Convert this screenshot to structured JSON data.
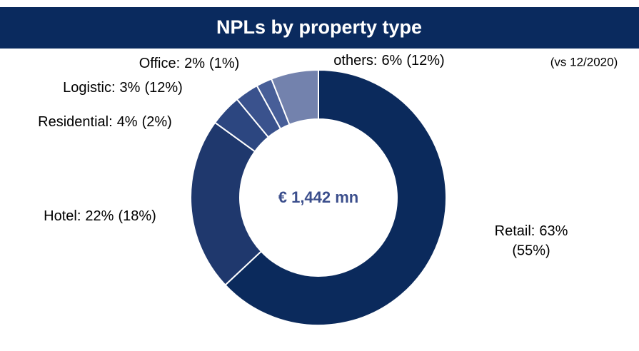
{
  "chart_data": {
    "type": "donut",
    "title": "NPLs by property type",
    "center_label": "€ 1,442 mn",
    "note": "(vs 12/2020)",
    "categories": [
      "Retail:",
      "Hotel:",
      "Residential:",
      "Logistic:",
      "Office:",
      "others:"
    ],
    "values": [
      63,
      22,
      4,
      3,
      2,
      6
    ],
    "value_labels": [
      "63%",
      "22%",
      "4%",
      "3%",
      "2%",
      "6%"
    ],
    "prev_values": [
      55,
      18,
      2,
      12,
      1,
      12
    ],
    "prev_value_labels": [
      "(55%)",
      "(18%)",
      "(2%)",
      "(12%)",
      "(1%)",
      "(12%)"
    ],
    "colors": [
      "#0b2a5c",
      "#1f386d",
      "#2c4680",
      "#3a528d",
      "#475e98",
      "#7382ad"
    ]
  }
}
